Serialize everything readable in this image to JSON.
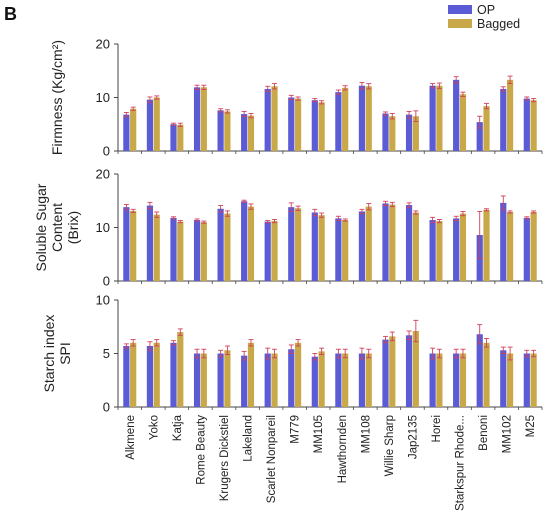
{
  "panel_letter": "B",
  "colors": {
    "op": "#5b5bd6",
    "bagged": "#c9a84a",
    "error": "#d2405a",
    "axis": "#444444"
  },
  "legend": [
    {
      "label": "OP",
      "color": "#5b5bd6"
    },
    {
      "label": "Bagged",
      "color": "#c9a84a"
    }
  ],
  "chart_data": [
    {
      "type": "bar",
      "ylabel": "Firmness (Kg/cm²)",
      "ylim": [
        0,
        20
      ],
      "yticks": [
        "0",
        "10",
        "20"
      ],
      "categories": [
        "Alkmene",
        "Yoko",
        "Katja",
        "Rome Beauty",
        "Krugers Dickstiel",
        "Lakeland",
        "Scarlet Nonpareil",
        "M779",
        "MM105",
        "Hawthornden",
        "MM108",
        "Willie Sharp",
        "Jap2135",
        "Horei",
        "Starkspur Rhode...",
        "Benoni",
        "MM102",
        "M25"
      ],
      "series": [
        {
          "name": "OP",
          "values": [
            6.8,
            9.6,
            5.0,
            11.9,
            7.6,
            6.9,
            11.6,
            10.0,
            9.5,
            11.0,
            12.2,
            7.0,
            6.8,
            12.2,
            13.3,
            5.4,
            11.6,
            9.8
          ],
          "errors": [
            0.4,
            0.5,
            0.2,
            0.4,
            0.3,
            0.5,
            0.5,
            0.4,
            0.3,
            0.4,
            0.6,
            0.3,
            0.6,
            0.4,
            0.6,
            1.1,
            0.4,
            0.3
          ]
        },
        {
          "name": "Bagged",
          "values": [
            7.9,
            10.0,
            4.9,
            11.9,
            7.4,
            6.6,
            12.1,
            9.8,
            9.1,
            11.8,
            12.1,
            6.5,
            6.5,
            12.2,
            10.6,
            8.4,
            13.3,
            9.5
          ],
          "errors": [
            0.3,
            0.3,
            0.3,
            0.4,
            0.3,
            0.4,
            0.5,
            0.3,
            0.3,
            0.4,
            0.5,
            0.5,
            1.0,
            0.5,
            0.4,
            0.5,
            0.7,
            0.3
          ]
        }
      ]
    },
    {
      "type": "bar",
      "ylabel": "Soluble Sugar Content (Brix)",
      "ylim": [
        0,
        20
      ],
      "yticks": [
        "0",
        "10",
        "20"
      ],
      "categories": [
        "Alkmene",
        "Yoko",
        "Katja",
        "Rome Beauty",
        "Krugers Dickstiel",
        "Lakeland",
        "Scarlet Nonpareil",
        "M779",
        "MM105",
        "Hawthornden",
        "MM108",
        "Willie Sharp",
        "Jap2135",
        "Horei",
        "Starkspur Rhode...",
        "Benoni",
        "MM102",
        "M25"
      ],
      "series": [
        {
          "name": "OP",
          "values": [
            13.8,
            14.1,
            11.8,
            11.4,
            13.5,
            14.9,
            11.1,
            13.8,
            12.8,
            11.7,
            13.0,
            14.5,
            14.2,
            11.4,
            11.7,
            8.6,
            14.6,
            11.8
          ],
          "errors": [
            0.5,
            0.6,
            0.2,
            0.2,
            0.6,
            0.2,
            0.2,
            0.8,
            0.6,
            0.4,
            0.4,
            0.4,
            0.4,
            0.5,
            0.4,
            4.4,
            1.3,
            0.2
          ]
        },
        {
          "name": "Bagged",
          "values": [
            13.1,
            12.4,
            11.1,
            11.0,
            12.6,
            13.9,
            11.2,
            13.6,
            12.3,
            11.4,
            13.9,
            14.3,
            12.8,
            11.2,
            12.6,
            13.3,
            12.9,
            12.9
          ],
          "errors": [
            0.3,
            0.5,
            0.2,
            0.2,
            0.5,
            0.5,
            0.3,
            0.4,
            0.4,
            0.2,
            0.6,
            0.4,
            0.3,
            0.3,
            0.4,
            0.2,
            0.2,
            0.2
          ]
        }
      ]
    },
    {
      "type": "bar",
      "ylabel": "Starch index SPI",
      "ylim": [
        0,
        10
      ],
      "yticks": [
        "0",
        "5",
        "10"
      ],
      "categories": [
        "Alkmene",
        "Yoko",
        "Katja",
        "Rome Beauty",
        "Krugers Dickstiel",
        "Lakeland",
        "Scarlet Nonpareil",
        "M779",
        "MM105",
        "Hawthornden",
        "MM108",
        "Willie Sharp",
        "Jap2135",
        "Horei",
        "Starkspur Rhode...",
        "Benoni",
        "MM102",
        "M25"
      ],
      "series": [
        {
          "name": "OP",
          "values": [
            5.7,
            5.7,
            6.0,
            5.0,
            5.0,
            4.8,
            5.0,
            5.4,
            4.7,
            5.0,
            5.0,
            6.3,
            6.7,
            5.0,
            5.0,
            6.8,
            5.3,
            5.0
          ],
          "errors": [
            0.2,
            0.4,
            0.2,
            0.4,
            0.3,
            0.4,
            0.5,
            0.4,
            0.3,
            0.4,
            0.5,
            0.3,
            0.4,
            0.5,
            0.4,
            0.9,
            0.3,
            0.3
          ]
        },
        {
          "name": "Bagged",
          "values": [
            6.0,
            6.0,
            7.0,
            5.0,
            5.3,
            6.0,
            5.0,
            6.0,
            5.2,
            5.0,
            5.0,
            6.6,
            7.1,
            5.0,
            5.0,
            6.0,
            5.0,
            5.0
          ],
          "errors": [
            0.3,
            0.3,
            0.3,
            0.4,
            0.4,
            0.3,
            0.4,
            0.3,
            0.3,
            0.4,
            0.4,
            0.4,
            1.0,
            0.4,
            0.4,
            0.4,
            0.6,
            0.3
          ]
        }
      ]
    }
  ]
}
